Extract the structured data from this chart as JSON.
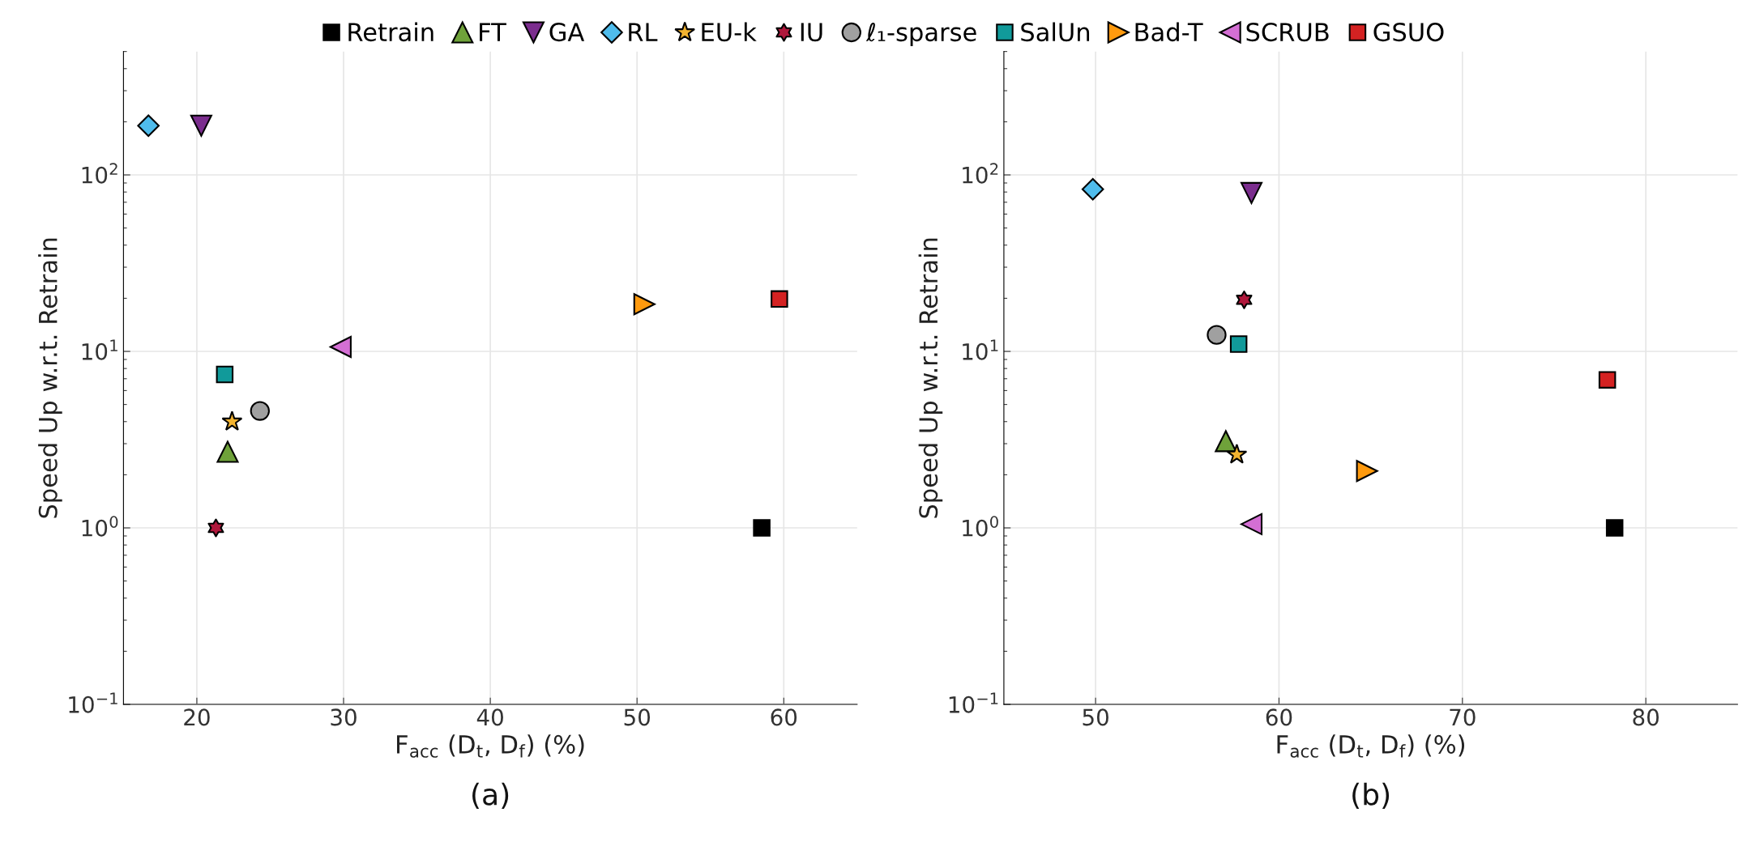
{
  "chart_data": [
    {
      "type": "scatter",
      "title": "(a)",
      "xlabel": "F$_{acc}$ (D$_{t}$, D$_{f}$) (%)",
      "ylabel": "Speed Up w.r.t. Retrain",
      "log": "y",
      "grid": true,
      "legend": "top",
      "xlim": [
        15,
        65
      ],
      "xticks": [
        20,
        30,
        40,
        50,
        60
      ],
      "ylim": [
        0.1,
        500
      ],
      "yticks": [
        {
          "value": 0.1,
          "label": "10$^{−1}$"
        },
        {
          "value": 1,
          "label": "10$^{0}$"
        },
        {
          "value": 10,
          "label": "10$^{1}$"
        },
        {
          "value": 100,
          "label": "10$^{2}$"
        }
      ],
      "series": [
        {
          "name": "Retrain",
          "color": "#000000",
          "marker": "square",
          "x": [
            58.5
          ],
          "values": [
            1.0
          ]
        },
        {
          "name": "FT",
          "color": "#6fa23a",
          "marker": "triangle",
          "x": [
            22.1
          ],
          "values": [
            2.7
          ]
        },
        {
          "name": "GA",
          "color": "#7b2d8e",
          "marker": "triangle-down",
          "x": [
            20.3
          ],
          "values": [
            190
          ]
        },
        {
          "name": "RL",
          "color": "#4fbcec",
          "marker": "diamond",
          "x": [
            16.7
          ],
          "values": [
            190
          ]
        },
        {
          "name": "EU-k",
          "color": "#f2b330",
          "marker": "star",
          "x": [
            22.4
          ],
          "values": [
            4.0
          ]
        },
        {
          "name": "IU",
          "color": "#b0183c",
          "marker": "cross",
          "x": [
            21.3
          ],
          "values": [
            1.0
          ]
        },
        {
          "name": "ℓ₁-sparse",
          "color": "#a0a0a0",
          "marker": "circle",
          "x": [
            24.3
          ],
          "values": [
            4.6
          ]
        },
        {
          "name": "SalUn",
          "color": "#119a9a",
          "marker": "square",
          "x": [
            21.9
          ],
          "values": [
            7.4
          ]
        },
        {
          "name": "Bad-T",
          "color": "#ff9a0e",
          "marker": "triangle-right",
          "x": [
            50.5
          ],
          "values": [
            18.5
          ]
        },
        {
          "name": "SCRUB",
          "color": "#d46fd4",
          "marker": "triangle-left",
          "x": [
            29.8
          ],
          "values": [
            10.6
          ]
        },
        {
          "name": "GSUO",
          "color": "#d42222",
          "marker": "square",
          "x": [
            59.7
          ],
          "values": [
            19.8
          ]
        }
      ]
    },
    {
      "type": "scatter",
      "title": "(b)",
      "xlabel": "F$_{acc}$ (D$_{t}$, D$_{f}$) (%)",
      "ylabel": "Speed Up w.r.t. Retrain",
      "log": "y",
      "grid": true,
      "xlim": [
        45,
        85
      ],
      "xticks": [
        50,
        60,
        70,
        80
      ],
      "ylim": [
        0.1,
        500
      ],
      "yticks": [
        {
          "value": 0.1,
          "label": "10$^{−1}$"
        },
        {
          "value": 1,
          "label": "10$^{0}$"
        },
        {
          "value": 10,
          "label": "10$^{1}$"
        },
        {
          "value": 100,
          "label": "10$^{2}$"
        }
      ],
      "series": [
        {
          "name": "Retrain",
          "color": "#000000",
          "marker": "square",
          "x": [
            78.3
          ],
          "values": [
            1.0
          ]
        },
        {
          "name": "FT",
          "color": "#6fa23a",
          "marker": "triangle",
          "x": [
            57.1
          ],
          "values": [
            3.1
          ]
        },
        {
          "name": "GA",
          "color": "#7b2d8e",
          "marker": "triangle-down",
          "x": [
            58.5
          ],
          "values": [
            79
          ]
        },
        {
          "name": "RL",
          "color": "#4fbcec",
          "marker": "diamond",
          "x": [
            49.85
          ],
          "values": [
            83
          ]
        },
        {
          "name": "EU-k",
          "color": "#f2b330",
          "marker": "star",
          "x": [
            57.7
          ],
          "values": [
            2.6
          ]
        },
        {
          "name": "IU",
          "color": "#b0183c",
          "marker": "cross",
          "x": [
            58.1
          ],
          "values": [
            19.6
          ]
        },
        {
          "name": "ℓ₁-sparse",
          "color": "#a0a0a0",
          "marker": "circle",
          "x": [
            56.6
          ],
          "values": [
            12.4
          ]
        },
        {
          "name": "SalUn",
          "color": "#119a9a",
          "marker": "square",
          "x": [
            57.8
          ],
          "values": [
            11.0
          ]
        },
        {
          "name": "Bad-T",
          "color": "#ff9a0e",
          "marker": "triangle-right",
          "x": [
            64.8
          ],
          "values": [
            2.1
          ]
        },
        {
          "name": "SCRUB",
          "color": "#d46fd4",
          "marker": "triangle-left",
          "x": [
            58.5
          ],
          "values": [
            1.05
          ]
        },
        {
          "name": "GSUO",
          "color": "#d42222",
          "marker": "square",
          "x": [
            77.9
          ],
          "values": [
            6.9
          ]
        }
      ]
    }
  ]
}
